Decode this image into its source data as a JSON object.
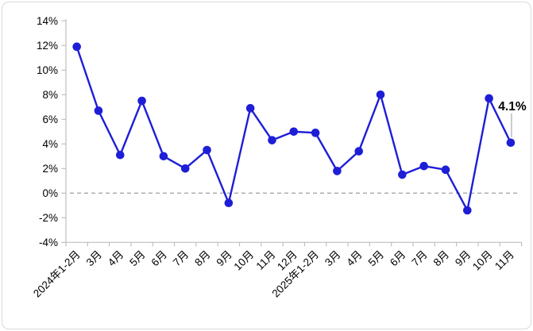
{
  "frame": {
    "background_color": "#ffffff",
    "border_color": "#d9d9d9"
  },
  "chart_data": {
    "type": "line",
    "title": "",
    "xlabel": "",
    "ylabel": "",
    "categories": [
      "2024年1-2月",
      "3月",
      "4月",
      "5月",
      "6月",
      "7月",
      "8月",
      "9月",
      "10月",
      "11月",
      "12月",
      "2025年1-2月",
      "3月",
      "4月",
      "5月",
      "6月",
      "7月",
      "8月",
      "9月",
      "10月",
      "11月"
    ],
    "values": [
      11.9,
      6.7,
      3.1,
      7.5,
      3.0,
      2.0,
      3.5,
      -0.8,
      6.9,
      4.3,
      5.0,
      4.9,
      1.8,
      3.4,
      8.0,
      1.5,
      2.2,
      1.9,
      -1.4,
      7.7,
      4.1
    ],
    "ylim": [
      -4,
      14
    ],
    "ytick_step": 2,
    "ytick_labels": [
      "14%",
      "12%",
      "10%",
      "8%",
      "6%",
      "4%",
      "2%",
      "0%",
      "-2%",
      "-4%"
    ],
    "grid": "off",
    "legend": "none",
    "zero_line": {
      "value": 0,
      "style": "dashed",
      "color": "#a8a8a8"
    },
    "annotation": {
      "text": "4.1%",
      "target_index": 20,
      "leader_color": "#bfbfbf",
      "text_color": "#000000"
    },
    "line_color": "#1e1ed7",
    "marker_color": "#1e1ed7",
    "axis_color": "#bfbfbf",
    "tick_label_color": "#000000",
    "x_labels_rotation_deg": -45
  }
}
